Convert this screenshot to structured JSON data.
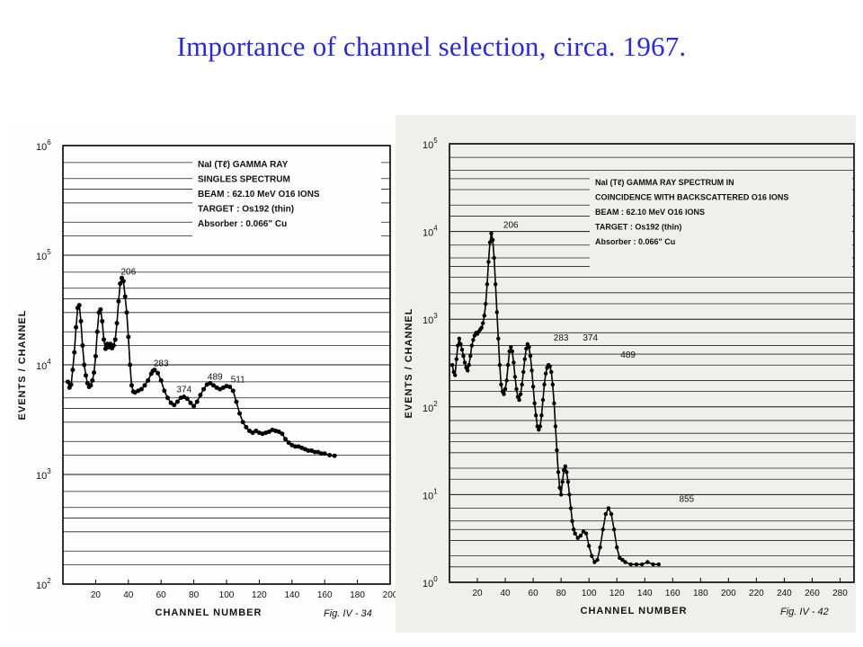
{
  "slide": {
    "title": "Importance of channel selection, circa. 1967."
  },
  "chart_data": [
    {
      "type": "scatter",
      "figure_label": "Fig. IV - 34",
      "legend": [
        "NaI (Tℓ) GAMMA RAY",
        "SINGLES SPECTRUM",
        "BEAM : 62.10 MeV O16 IONS",
        "TARGET : Os192 (thin)",
        "Absorber : 0.066\" Cu"
      ],
      "xlabel": "CHANNEL NUMBER",
      "ylabel": "EVENTS / CHANNEL",
      "xlim": [
        0,
        200
      ],
      "ylim": [
        100,
        1000000
      ],
      "log_y": true,
      "x_ticks": [
        20,
        40,
        60,
        80,
        100,
        120,
        140,
        160,
        180,
        200
      ],
      "y_ticks": [
        {
          "value": 100,
          "base": "10",
          "exp": "2"
        },
        {
          "value": 1000,
          "base": "10",
          "exp": "3"
        },
        {
          "value": 10000,
          "base": "10",
          "exp": "4"
        },
        {
          "value": 100000,
          "base": "10",
          "exp": "5"
        },
        {
          "value": 1000000,
          "base": "10",
          "exp": "6"
        }
      ],
      "peak_labels": [
        {
          "text": "206",
          "x": 40,
          "y": 62000
        },
        {
          "text": "283",
          "x": 60,
          "y": 9000
        },
        {
          "text": "374",
          "x": 74,
          "y": 5200
        },
        {
          "text": "489",
          "x": 93,
          "y": 6800
        },
        {
          "text": "511",
          "x": 107,
          "y": 6400
        }
      ],
      "series": [
        {
          "points": [
            [
              3,
              7000
            ],
            [
              4,
              6200
            ],
            [
              5,
              6600
            ],
            [
              6,
              9000
            ],
            [
              7,
              13000
            ],
            [
              8,
              22000
            ],
            [
              9,
              33000
            ],
            [
              10,
              35000
            ],
            [
              11,
              25000
            ],
            [
              12,
              15000
            ],
            [
              13,
              10000
            ],
            [
              14,
              8000
            ],
            [
              15,
              6800
            ],
            [
              16,
              6300
            ],
            [
              17,
              6500
            ],
            [
              18,
              7200
            ],
            [
              19,
              8500
            ],
            [
              20,
              12000
            ],
            [
              21,
              20000
            ],
            [
              22,
              30000
            ],
            [
              23,
              32000
            ],
            [
              24,
              25000
            ],
            [
              25,
              17000
            ],
            [
              26,
              14000
            ],
            [
              27,
              15500
            ],
            [
              28,
              14500
            ],
            [
              29,
              15500
            ],
            [
              30,
              14200
            ],
            [
              31,
              15000
            ],
            [
              32,
              17000
            ],
            [
              33,
              24000
            ],
            [
              34,
              38000
            ],
            [
              35,
              55000
            ],
            [
              36,
              62000
            ],
            [
              37,
              58000
            ],
            [
              38,
              42000
            ],
            [
              39,
              30000
            ],
            [
              40,
              18000
            ],
            [
              41,
              10000
            ],
            [
              42,
              6500
            ],
            [
              43,
              5700
            ],
            [
              44,
              5600
            ],
            [
              46,
              5800
            ],
            [
              48,
              6000
            ],
            [
              50,
              6500
            ],
            [
              52,
              7200
            ],
            [
              54,
              8300
            ],
            [
              55,
              8800
            ],
            [
              56,
              9000
            ],
            [
              58,
              8400
            ],
            [
              60,
              7200
            ],
            [
              62,
              5800
            ],
            [
              64,
              5000
            ],
            [
              66,
              4500
            ],
            [
              68,
              4300
            ],
            [
              70,
              4600
            ],
            [
              72,
              5000
            ],
            [
              74,
              5100
            ],
            [
              76,
              4900
            ],
            [
              78,
              4500
            ],
            [
              80,
              4200
            ],
            [
              82,
              4600
            ],
            [
              84,
              5300
            ],
            [
              86,
              6000
            ],
            [
              88,
              6600
            ],
            [
              90,
              6800
            ],
            [
              92,
              6500
            ],
            [
              94,
              6200
            ],
            [
              96,
              6000
            ],
            [
              98,
              6200
            ],
            [
              100,
              6400
            ],
            [
              102,
              6300
            ],
            [
              104,
              5800
            ],
            [
              106,
              4600
            ],
            [
              108,
              3600
            ],
            [
              110,
              3000
            ],
            [
              112,
              2700
            ],
            [
              114,
              2500
            ],
            [
              116,
              2400
            ],
            [
              118,
              2500
            ],
            [
              120,
              2400
            ],
            [
              122,
              2350
            ],
            [
              124,
              2400
            ],
            [
              126,
              2450
            ],
            [
              128,
              2550
            ],
            [
              130,
              2500
            ],
            [
              132,
              2450
            ],
            [
              134,
              2350
            ],
            [
              136,
              2100
            ],
            [
              138,
              1950
            ],
            [
              140,
              1850
            ],
            [
              142,
              1800
            ],
            [
              144,
              1800
            ],
            [
              146,
              1750
            ],
            [
              148,
              1700
            ],
            [
              150,
              1650
            ],
            [
              152,
              1650
            ],
            [
              154,
              1600
            ],
            [
              156,
              1600
            ],
            [
              158,
              1550
            ],
            [
              160,
              1550
            ],
            [
              163,
              1500
            ],
            [
              166,
              1480
            ]
          ]
        }
      ]
    },
    {
      "type": "scatter",
      "figure_label": "Fig. IV - 42",
      "legend": [
        "NaI (Tℓ) GAMMA RAY SPECTRUM IN",
        "COINCIDENCE WITH BACKSCATTERED O16 IONS",
        "BEAM : 62.10 MeV O16 IONS",
        "TARGET : Os192 (thin)",
        "Absorber : 0.066\" Cu"
      ],
      "xlabel": "CHANNEL NUMBER",
      "ylabel": "EVENTS / CHANNEL",
      "xlim": [
        0,
        290
      ],
      "ylim": [
        1,
        100000
      ],
      "log_y": true,
      "x_ticks": [
        20,
        40,
        60,
        80,
        100,
        120,
        140,
        160,
        180,
        200,
        220,
        240,
        260,
        280
      ],
      "y_ticks": [
        {
          "value": 1,
          "base": "10",
          "exp": "0"
        },
        {
          "value": 10,
          "base": "10",
          "exp": "1"
        },
        {
          "value": 100,
          "base": "10",
          "exp": "2"
        },
        {
          "value": 1000,
          "base": "10",
          "exp": "3"
        },
        {
          "value": 10000,
          "base": "10",
          "exp": "4"
        },
        {
          "value": 100000,
          "base": "10",
          "exp": "5"
        }
      ],
      "peak_labels": [
        {
          "text": "206",
          "x": 44,
          "y": 10000
        },
        {
          "text": "283",
          "x": 80,
          "y": 520
        },
        {
          "text": "374",
          "x": 101,
          "y": 520
        },
        {
          "text": "489",
          "x": 128,
          "y": 330
        },
        {
          "text": "855",
          "x": 170,
          "y": 7.5
        }
      ],
      "series": [
        {
          "points": [
            [
              2,
              300
            ],
            [
              3,
              250
            ],
            [
              4,
              230
            ],
            [
              5,
              350
            ],
            [
              6,
              500
            ],
            [
              7,
              600
            ],
            [
              8,
              520
            ],
            [
              9,
              450
            ],
            [
              10,
              380
            ],
            [
              11,
              320
            ],
            [
              12,
              280
            ],
            [
              13,
              260
            ],
            [
              14,
              300
            ],
            [
              15,
              380
            ],
            [
              16,
              500
            ],
            [
              17,
              580
            ],
            [
              18,
              650
            ],
            [
              19,
              700
            ],
            [
              20,
              680
            ],
            [
              21,
              720
            ],
            [
              22,
              760
            ],
            [
              23,
              800
            ],
            [
              24,
              900
            ],
            [
              25,
              1100
            ],
            [
              26,
              1500
            ],
            [
              27,
              2500
            ],
            [
              28,
              4500
            ],
            [
              29,
              7500
            ],
            [
              30,
              9500
            ],
            [
              31,
              8000
            ],
            [
              32,
              5000
            ],
            [
              33,
              2500
            ],
            [
              34,
              1200
            ],
            [
              35,
              600
            ],
            [
              36,
              300
            ],
            [
              37,
              180
            ],
            [
              38,
              150
            ],
            [
              39,
              140
            ],
            [
              40,
              160
            ],
            [
              41,
              200
            ],
            [
              42,
              300
            ],
            [
              43,
              430
            ],
            [
              44,
              480
            ],
            [
              45,
              430
            ],
            [
              46,
              320
            ],
            [
              47,
              220
            ],
            [
              48,
              160
            ],
            [
              49,
              130
            ],
            [
              50,
              120
            ],
            [
              51,
              140
            ],
            [
              52,
              180
            ],
            [
              53,
              250
            ],
            [
              54,
              350
            ],
            [
              55,
              460
            ],
            [
              56,
              520
            ],
            [
              57,
              480
            ],
            [
              58,
              380
            ],
            [
              59,
              260
            ],
            [
              60,
              170
            ],
            [
              61,
              110
            ],
            [
              62,
              80
            ],
            [
              63,
              60
            ],
            [
              64,
              55
            ],
            [
              65,
              60
            ],
            [
              66,
              80
            ],
            [
              67,
              120
            ],
            [
              68,
              180
            ],
            [
              69,
              240
            ],
            [
              70,
              280
            ],
            [
              71,
              300
            ],
            [
              72,
              290
            ],
            [
              73,
              250
            ],
            [
              74,
              180
            ],
            [
              75,
              110
            ],
            [
              76,
              60
            ],
            [
              77,
              32
            ],
            [
              78,
              18
            ],
            [
              79,
              12
            ],
            [
              80,
              10
            ],
            [
              81,
              14
            ],
            [
              82,
              19
            ],
            [
              83,
              21
            ],
            [
              84,
              18
            ],
            [
              85,
              14
            ],
            [
              86,
              10
            ],
            [
              87,
              7
            ],
            [
              88,
              5
            ],
            [
              89,
              4
            ],
            [
              90,
              3.6
            ],
            [
              92,
              3.2
            ],
            [
              94,
              3.4
            ],
            [
              96,
              3.8
            ],
            [
              98,
              3.6
            ],
            [
              100,
              2.6
            ],
            [
              102,
              2
            ],
            [
              104,
              1.7
            ],
            [
              106,
              1.8
            ],
            [
              108,
              2.5
            ],
            [
              110,
              4
            ],
            [
              112,
              6
            ],
            [
              114,
              7
            ],
            [
              116,
              6
            ],
            [
              118,
              4
            ],
            [
              120,
              2.5
            ],
            [
              122,
              1.9
            ],
            [
              124,
              1.8
            ],
            [
              126,
              1.7
            ],
            [
              130,
              1.6
            ],
            [
              134,
              1.6
            ],
            [
              138,
              1.6
            ],
            [
              142,
              1.7
            ],
            [
              146,
              1.6
            ],
            [
              150,
              1.6
            ]
          ]
        }
      ]
    }
  ]
}
